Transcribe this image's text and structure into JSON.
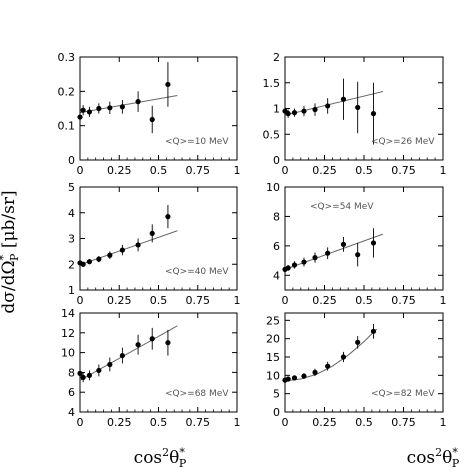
{
  "figure": {
    "ylabel": "dσ/dΩ",
    "ylabel_sup": "*",
    "ylabel_sub": "P",
    "ylabel_unit": " [μb/sr]",
    "xlabel": "cos",
    "xlabel_sup": "2",
    "xlabel_theta": "θ",
    "xlabel_theta_sup": "*",
    "xlabel_theta_sub": "P"
  },
  "chart_data": [
    {
      "type": "scatter",
      "annotation": "<Q>=10 MeV",
      "xlim": [
        0,
        1
      ],
      "ylim": [
        0,
        0.3
      ],
      "xticks": [
        "0",
        "0.25",
        "0.5",
        "0.75",
        "1"
      ],
      "yticks": [
        "0",
        "0.1",
        "0.2",
        "0.3"
      ],
      "x": [
        0.0,
        0.02,
        0.06,
        0.12,
        0.19,
        0.27,
        0.37,
        0.46,
        0.56
      ],
      "y": [
        0.125,
        0.145,
        0.14,
        0.15,
        0.152,
        0.155,
        0.17,
        0.118,
        0.22
      ],
      "yerr": [
        0.015,
        0.015,
        0.015,
        0.015,
        0.018,
        0.02,
        0.03,
        0.04,
        0.065
      ],
      "fit_x": [
        0.0,
        0.62
      ],
      "fit_y": [
        0.138,
        0.188
      ]
    },
    {
      "type": "scatter",
      "annotation": "<Q>=26 MeV",
      "xlim": [
        0,
        1
      ],
      "ylim": [
        0,
        2
      ],
      "xticks": [
        "0",
        "0.25",
        "0.5",
        "0.75",
        "1"
      ],
      "yticks": [
        "0",
        "0.5",
        "1",
        "1.5",
        "2"
      ],
      "x": [
        0.0,
        0.02,
        0.06,
        0.12,
        0.19,
        0.27,
        0.37,
        0.46,
        0.56
      ],
      "y": [
        0.95,
        0.9,
        0.92,
        0.95,
        0.98,
        1.05,
        1.18,
        1.02,
        0.9
      ],
      "yerr": [
        0.08,
        0.08,
        0.08,
        0.1,
        0.12,
        0.15,
        0.4,
        0.5,
        0.6
      ],
      "fit_x": [
        0.0,
        0.62
      ],
      "fit_y": [
        0.87,
        1.33
      ]
    },
    {
      "type": "scatter",
      "annotation": "<Q>=40 MeV",
      "xlim": [
        0,
        1
      ],
      "ylim": [
        1,
        5
      ],
      "xticks": [
        "0",
        "0.25",
        "0.5",
        "0.75",
        "1"
      ],
      "yticks": [
        "1",
        "2",
        "3",
        "4",
        "5"
      ],
      "x": [
        0.0,
        0.02,
        0.06,
        0.12,
        0.19,
        0.27,
        0.37,
        0.46,
        0.56
      ],
      "y": [
        2.05,
        2.0,
        2.1,
        2.2,
        2.35,
        2.55,
        2.75,
        3.2,
        3.85
      ],
      "yerr": [
        0.08,
        0.08,
        0.1,
        0.12,
        0.15,
        0.2,
        0.25,
        0.35,
        0.45
      ],
      "fit_x": [
        0.0,
        0.62
      ],
      "fit_y": [
        1.98,
        3.3
      ]
    },
    {
      "type": "scatter",
      "annotation": "<Q>=54 MeV",
      "xlim": [
        0,
        1
      ],
      "ylim": [
        3,
        10
      ],
      "xticks": [
        "0",
        "0.25",
        "0.5",
        "0.75",
        "1"
      ],
      "yticks": [
        "4",
        "6",
        "8",
        "10"
      ],
      "x": [
        0.0,
        0.02,
        0.06,
        0.12,
        0.19,
        0.27,
        0.37,
        0.46,
        0.56
      ],
      "y": [
        4.4,
        4.5,
        4.7,
        4.9,
        5.2,
        5.5,
        6.1,
        5.4,
        6.2
      ],
      "yerr": [
        0.2,
        0.2,
        0.25,
        0.3,
        0.35,
        0.4,
        0.5,
        0.8,
        1.0
      ],
      "fit_x": [
        0.0,
        0.62
      ],
      "fit_y": [
        4.4,
        6.8
      ]
    },
    {
      "type": "scatter",
      "annotation": "<Q>=68 MeV",
      "xlim": [
        0,
        1
      ],
      "ylim": [
        4,
        14
      ],
      "xticks": [
        "0",
        "0.25",
        "0.5",
        "0.75",
        "1"
      ],
      "yticks": [
        "4",
        "6",
        "8",
        "10",
        "12",
        "14"
      ],
      "x": [
        0.0,
        0.02,
        0.06,
        0.12,
        0.19,
        0.27,
        0.37,
        0.46,
        0.56
      ],
      "y": [
        7.9,
        7.5,
        7.7,
        8.2,
        8.8,
        9.7,
        10.8,
        11.4,
        11.0
      ],
      "yerr": [
        0.5,
        0.5,
        0.5,
        0.6,
        0.7,
        0.8,
        1.0,
        1.1,
        1.3
      ],
      "fit_x": [
        0.0,
        0.62
      ],
      "fit_y": [
        7.2,
        12.7
      ]
    },
    {
      "type": "scatter",
      "annotation": "<Q>=82 MeV",
      "xlim": [
        0,
        1
      ],
      "ylim": [
        0,
        27
      ],
      "xticks": [
        "0",
        "0.25",
        "0.5",
        "0.75",
        "1"
      ],
      "yticks": [
        "0",
        "5",
        "10",
        "15",
        "20",
        "25"
      ],
      "x": [
        0.0,
        0.02,
        0.06,
        0.12,
        0.19,
        0.27,
        0.37,
        0.46,
        0.56
      ],
      "y": [
        8.7,
        9.0,
        9.3,
        9.8,
        10.8,
        12.5,
        15.0,
        19.0,
        22.0
      ],
      "yerr": [
        0.5,
        0.5,
        0.6,
        0.8,
        1.0,
        1.2,
        1.4,
        1.7,
        2.0
      ],
      "fit_x": [
        0.0,
        0.1,
        0.2,
        0.3,
        0.4,
        0.5,
        0.58
      ],
      "fit_y": [
        8.5,
        9.0,
        10.3,
        12.5,
        15.5,
        19.2,
        22.6
      ]
    }
  ]
}
